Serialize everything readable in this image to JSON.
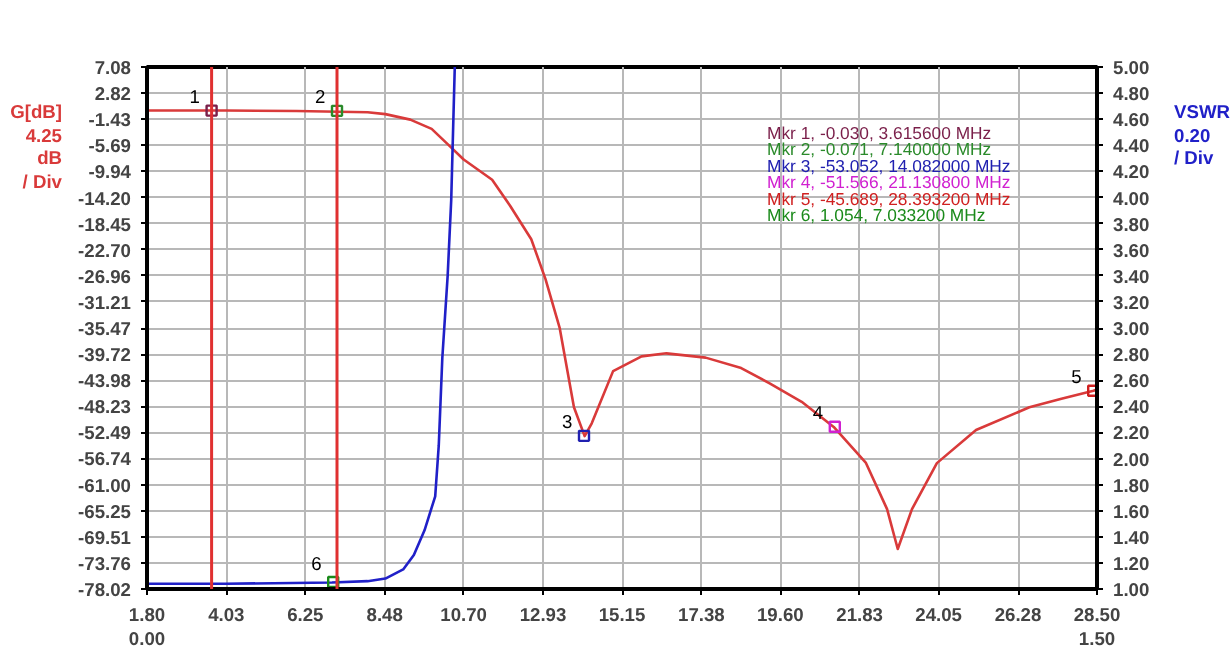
{
  "chart_data": {
    "type": "line",
    "ylabel": "G[dB]",
    "y2label": "VSWR",
    "annotations": [
      "4.25\ndB\n/ Div",
      "0.20\n/ Div",
      {
        "text": "1",
        "x": 3.6156,
        "y": -0.03
      },
      {
        "text": "2",
        "x": 7.14,
        "y": -0.071
      },
      {
        "text": "3",
        "x": 14.082,
        "y": -53.052
      },
      {
        "text": "4",
        "x": 21.1308,
        "y": -51.566
      },
      {
        "text": "5",
        "x": 28.3932,
        "y": -45.689
      },
      {
        "text": "6",
        "x": 7.0332,
        "y": -76.3
      }
    ],
    "xlim": [
      1.8,
      28.5
    ],
    "xticks": [
      {
        "value": 1.8,
        "label": "1.80\n0.00"
      },
      4.03,
      6.25,
      8.48,
      {
        "value": 10.7,
        "label": "10.70"
      },
      12.93,
      15.15,
      17.38,
      {
        "value": 19.6,
        "label": "19.60"
      },
      21.83,
      24.05,
      26.28,
      {
        "value": 28.5,
        "label": "28.50\n1.50"
      }
    ],
    "ylim": [
      -78.02,
      7.08
    ],
    "yticks": [
      7.08,
      2.82,
      -1.43,
      -5.69,
      -9.94,
      {
        "value": -14.2,
        "label": "-14.20"
      },
      -18.45,
      {
        "value": -22.7,
        "label": "-22.70"
      },
      -26.96,
      -31.21,
      -35.47,
      -39.72,
      -43.98,
      -48.23,
      -52.49,
      -56.74,
      {
        "value": -61.0,
        "label": "-61.00"
      },
      -65.25,
      -69.51,
      -73.76,
      -78.02
    ],
    "y2lim": [
      1.0,
      5.0
    ],
    "y2ticks": [
      {
        "value": 1.0,
        "label": "1.00"
      },
      {
        "value": 1.2,
        "label": "1.20"
      },
      {
        "value": 1.4,
        "label": "1.40"
      },
      {
        "value": 1.6,
        "label": "1.60"
      },
      {
        "value": 1.8,
        "label": "1.80"
      },
      {
        "value": 2.0,
        "label": "2.00"
      },
      {
        "value": 2.2,
        "label": "2.20"
      },
      {
        "value": 2.4,
        "label": "2.40"
      },
      {
        "value": 2.6,
        "label": "2.60"
      },
      {
        "value": 2.8,
        "label": "2.80"
      },
      {
        "value": 3.0,
        "label": "3.00"
      },
      {
        "value": 3.2,
        "label": "3.20"
      },
      {
        "value": 3.4,
        "label": "3.40"
      },
      {
        "value": 3.6,
        "label": "3.60"
      },
      {
        "value": 3.8,
        "label": "3.80"
      },
      {
        "value": 4.0,
        "label": "4.00"
      },
      {
        "value": 4.2,
        "label": "4.20"
      },
      {
        "value": 4.4,
        "label": "4.40"
      },
      {
        "value": 4.6,
        "label": "4.60"
      },
      {
        "value": 4.8,
        "label": "4.80"
      },
      {
        "value": 5.0,
        "label": "5.00"
      }
    ],
    "grid": true,
    "legend": "top right",
    "ref_lines": [
      {
        "axis": "x",
        "value": 3.6156,
        "color": "#e03030"
      },
      {
        "axis": "x",
        "value": 7.14,
        "color": "#e03030"
      }
    ],
    "series": [
      {
        "color": "#d93a3a",
        "x": [
          1.8,
          4.0,
          6.0,
          8.0,
          8.5,
          9.2,
          9.8,
          10.25,
          10.7,
          11.5,
          12.0,
          12.6,
          13.0,
          13.4,
          13.8,
          14.1,
          14.3,
          14.9,
          15.7,
          16.4,
          17.5,
          18.5,
          19.3,
          20.2,
          21.1,
          22.0,
          22.6,
          22.9,
          23.3,
          24.0,
          25.1,
          26.6,
          27.5,
          28.4,
          28.5
        ],
        "values": [
          0.0,
          0.0,
          -0.1,
          -0.3,
          -0.6,
          -1.5,
          -3.0,
          -5.5,
          -8.0,
          -11.3,
          -15.5,
          -21.0,
          -27.5,
          -35.5,
          -48.4,
          -53.1,
          -51.0,
          -42.5,
          -40.1,
          -39.6,
          -40.3,
          -42.0,
          -44.5,
          -47.5,
          -51.6,
          -57.4,
          -65.0,
          -71.5,
          -65.0,
          -57.5,
          -52.1,
          -48.4,
          -47.0,
          -45.7,
          -45.5
        ]
      },
      {
        "axis": "y2",
        "color": "#2020c8",
        "x": [
          1.8,
          4.0,
          7.0,
          8.0,
          8.5,
          9.0,
          9.3,
          9.6,
          9.9,
          10.0,
          10.1,
          10.25,
          10.35,
          10.45
        ],
        "values": [
          1.04,
          1.04,
          1.05,
          1.06,
          1.08,
          1.15,
          1.26,
          1.45,
          1.71,
          2.1,
          2.77,
          3.4,
          3.98,
          5.0
        ]
      },
      {
        "type": "scatter",
        "marker": "square",
        "name": "Mkr 1, -0.030, 3.615600 MHz",
        "color": "#7a1f4a",
        "x": [
          3.6156
        ],
        "values": [
          -0.03
        ]
      },
      {
        "type": "scatter",
        "marker": "square",
        "name": "Mkr 2, -0.071, 7.140000 MHz",
        "color": "#2a8a2a",
        "x": [
          7.14
        ],
        "values": [
          -0.071
        ]
      },
      {
        "type": "scatter",
        "marker": "square",
        "name": "Mkr 3, -53.052, 14.082000 MHz",
        "color": "#2020b0",
        "x": [
          14.082
        ],
        "values": [
          -53.052
        ]
      },
      {
        "type": "scatter",
        "marker": "square",
        "name": "Mkr 4, -51.566, 21.130800 MHz",
        "color": "#d020d0",
        "x": [
          21.1308
        ],
        "values": [
          -51.566
        ]
      },
      {
        "type": "scatter",
        "marker": "square",
        "name": "Mkr 5, -45.689, 28.393200 MHz",
        "color": "#d02020",
        "x": [
          28.3932
        ],
        "values": [
          -45.689
        ]
      },
      {
        "type": "scatter",
        "marker": "square",
        "axis": "y2",
        "name": "Mkr 6, 1.054, 7.033200 MHz",
        "color": "#1a8a1a",
        "x": [
          7.0332
        ],
        "values": [
          1.054
        ]
      }
    ]
  }
}
